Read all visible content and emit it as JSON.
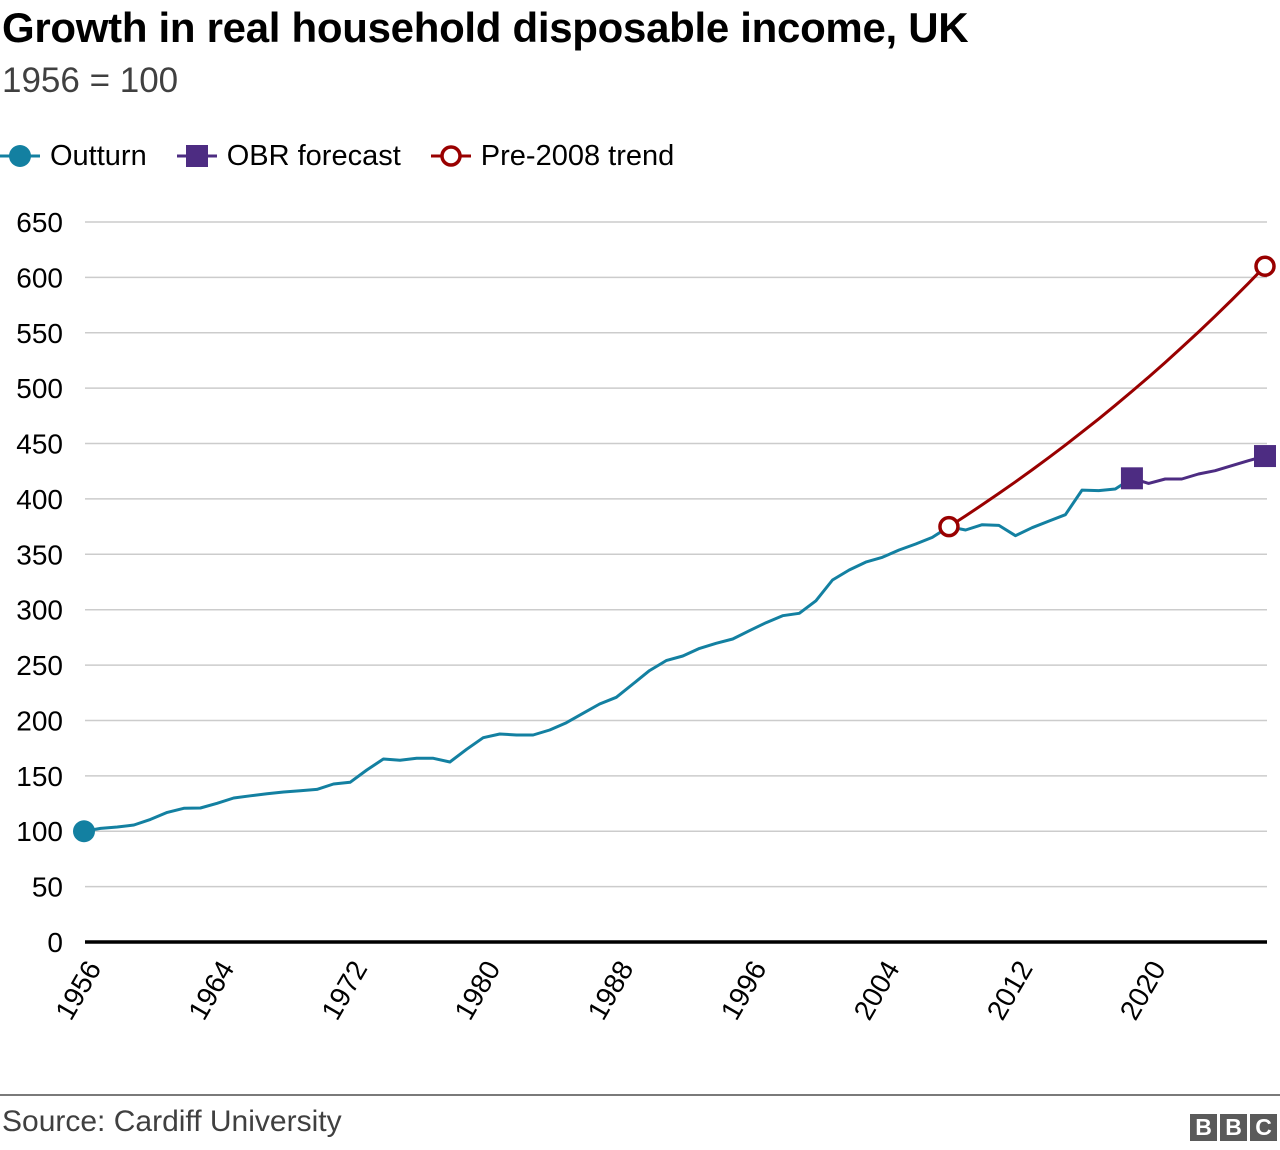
{
  "header": {
    "title": "Growth in real household disposable income, UK",
    "subtitle": "1956 = 100"
  },
  "legend": [
    {
      "label": "Outturn",
      "marker": "filled-circle",
      "color": "#1380a1"
    },
    {
      "label": "OBR forecast",
      "marker": "filled-square",
      "color": "#4d2c82"
    },
    {
      "label": "Pre-2008 trend",
      "marker": "hollow-circle",
      "color": "#990000"
    }
  ],
  "footer": {
    "source": "Source: Cardiff University",
    "logo_letters": [
      "B",
      "B",
      "C"
    ]
  },
  "chart_data": {
    "type": "line",
    "title": "Growth in real household disposable income, UK",
    "subtitle": "1956 = 100",
    "xlabel": "",
    "ylabel": "",
    "xlim": [
      1956,
      2027
    ],
    "ylim": [
      0,
      650
    ],
    "yticks": [
      0,
      50,
      100,
      150,
      200,
      250,
      300,
      350,
      400,
      450,
      500,
      550,
      600,
      650
    ],
    "xticks": [
      1956,
      1964,
      1972,
      1980,
      1988,
      1996,
      2004,
      2012,
      2020
    ],
    "grid": true,
    "legend_position": "top-left",
    "series": [
      {
        "name": "Outturn",
        "color": "#1380a1",
        "marker": "filled-circle at start",
        "x": [
          1956,
          1957,
          1958,
          1959,
          1960,
          1961,
          1962,
          1963,
          1964,
          1965,
          1966,
          1967,
          1968,
          1969,
          1970,
          1971,
          1972,
          1973,
          1974,
          1975,
          1976,
          1977,
          1978,
          1979,
          1980,
          1981,
          1982,
          1983,
          1984,
          1985,
          1986,
          1987,
          1988,
          1989,
          1990,
          1991,
          1992,
          1993,
          1994,
          1995,
          1996,
          1997,
          1998,
          1999,
          2000,
          2001,
          2002,
          2003,
          2004,
          2005,
          2006,
          2007,
          2008,
          2009,
          2010,
          2011,
          2012,
          2013,
          2014,
          2015,
          2016,
          2017,
          2018,
          2019
        ],
        "values": [
          100,
          102.6,
          103.8,
          105.6,
          110.7,
          117,
          120.7,
          121,
          125.2,
          130,
          132,
          133.9,
          135.4,
          136.6,
          137.8,
          142.6,
          144.2,
          155.3,
          165.2,
          164,
          165.8,
          165.8,
          162.5,
          174,
          184.4,
          187.8,
          186.9,
          186.9,
          191.4,
          198,
          206.5,
          214.9,
          220.9,
          232.9,
          245,
          254,
          258.2,
          265.1,
          269.7,
          273.5,
          281,
          288.3,
          294.6,
          296.7,
          308,
          326.8,
          335.8,
          343,
          347.3,
          353.9,
          359.3,
          365.3,
          374.9,
          371.9,
          376.7,
          376.1,
          366.8,
          374,
          380,
          385.8,
          408,
          407.5,
          409,
          418.6
        ]
      },
      {
        "name": "OBR forecast",
        "color": "#4d2c82",
        "marker": "filled-square at start and end",
        "x": [
          2019,
          2020,
          2021,
          2022,
          2023,
          2024,
          2025,
          2026,
          2027
        ],
        "values": [
          418.6,
          414,
          418,
          418,
          422.5,
          425.5,
          430,
          434.5,
          438.7
        ]
      },
      {
        "name": "Pre-2008 trend",
        "color": "#990000",
        "marker": "hollow-circle at start and end",
        "x": [
          2008,
          2009,
          2010,
          2011,
          2012,
          2013,
          2014,
          2015,
          2016,
          2017,
          2018,
          2019,
          2020,
          2021,
          2022,
          2023,
          2024,
          2025,
          2026,
          2027
        ],
        "values": [
          375,
          384.7,
          394.7,
          405,
          415.5,
          426.2,
          437.3,
          448.6,
          460.3,
          472.2,
          484.5,
          497.1,
          510,
          523.2,
          536.8,
          550.7,
          565,
          579.6,
          594.7,
          610.1
        ]
      }
    ]
  }
}
